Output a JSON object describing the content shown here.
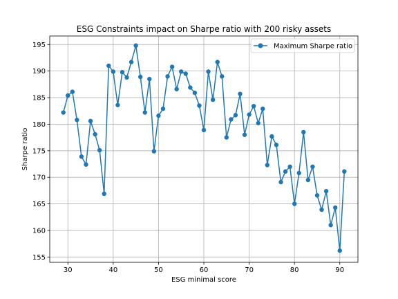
{
  "chart_data": {
    "type": "line",
    "title": "ESG Constraints impact on Sharpe ratio with 200 risky assets",
    "xlabel": "ESG minimal score",
    "ylabel": "Sharpe ratio",
    "xlim": [
      26,
      94
    ],
    "ylim": [
      154.0,
      196.6
    ],
    "xticks": [
      30,
      40,
      50,
      60,
      70,
      80,
      90
    ],
    "yticks": [
      155,
      160,
      165,
      170,
      175,
      180,
      185,
      190,
      195
    ],
    "grid": true,
    "legend_position": "top-right",
    "series": [
      {
        "name": "Maximum Sharpe ratio",
        "color": "#1f77b4",
        "marker": "circle",
        "x": [
          29,
          30,
          31,
          32,
          33,
          34,
          35,
          36,
          37,
          38,
          39,
          40,
          41,
          42,
          43,
          44,
          45,
          46,
          47,
          48,
          49,
          50,
          51,
          52,
          53,
          54,
          55,
          56,
          57,
          58,
          59,
          60,
          61,
          62,
          63,
          64,
          65,
          66,
          67,
          68,
          69,
          70,
          71,
          72,
          73,
          74,
          75,
          76,
          77,
          78,
          79,
          80,
          81,
          82,
          83,
          84,
          85,
          86,
          87,
          88,
          89,
          90,
          91
        ],
        "y": [
          182.2,
          185.4,
          186.1,
          180.8,
          173.9,
          172.4,
          180.6,
          178.1,
          175.1,
          166.9,
          191.0,
          189.9,
          183.6,
          189.8,
          188.8,
          191.7,
          194.8,
          188.9,
          182.2,
          188.5,
          174.9,
          181.6,
          182.9,
          189.0,
          190.8,
          186.6,
          189.9,
          189.5,
          186.9,
          185.9,
          183.5,
          178.9,
          189.9,
          184.6,
          191.7,
          189.0,
          177.5,
          180.9,
          181.7,
          185.7,
          178.0,
          181.8,
          183.4,
          180.2,
          182.9,
          172.3,
          177.7,
          176.1,
          169.1,
          171.1,
          172.0,
          165.0,
          170.8,
          178.5,
          169.5,
          172.0,
          166.6,
          163.9,
          167.4,
          161.0,
          164.3,
          156.2,
          171.1
        ]
      }
    ]
  }
}
